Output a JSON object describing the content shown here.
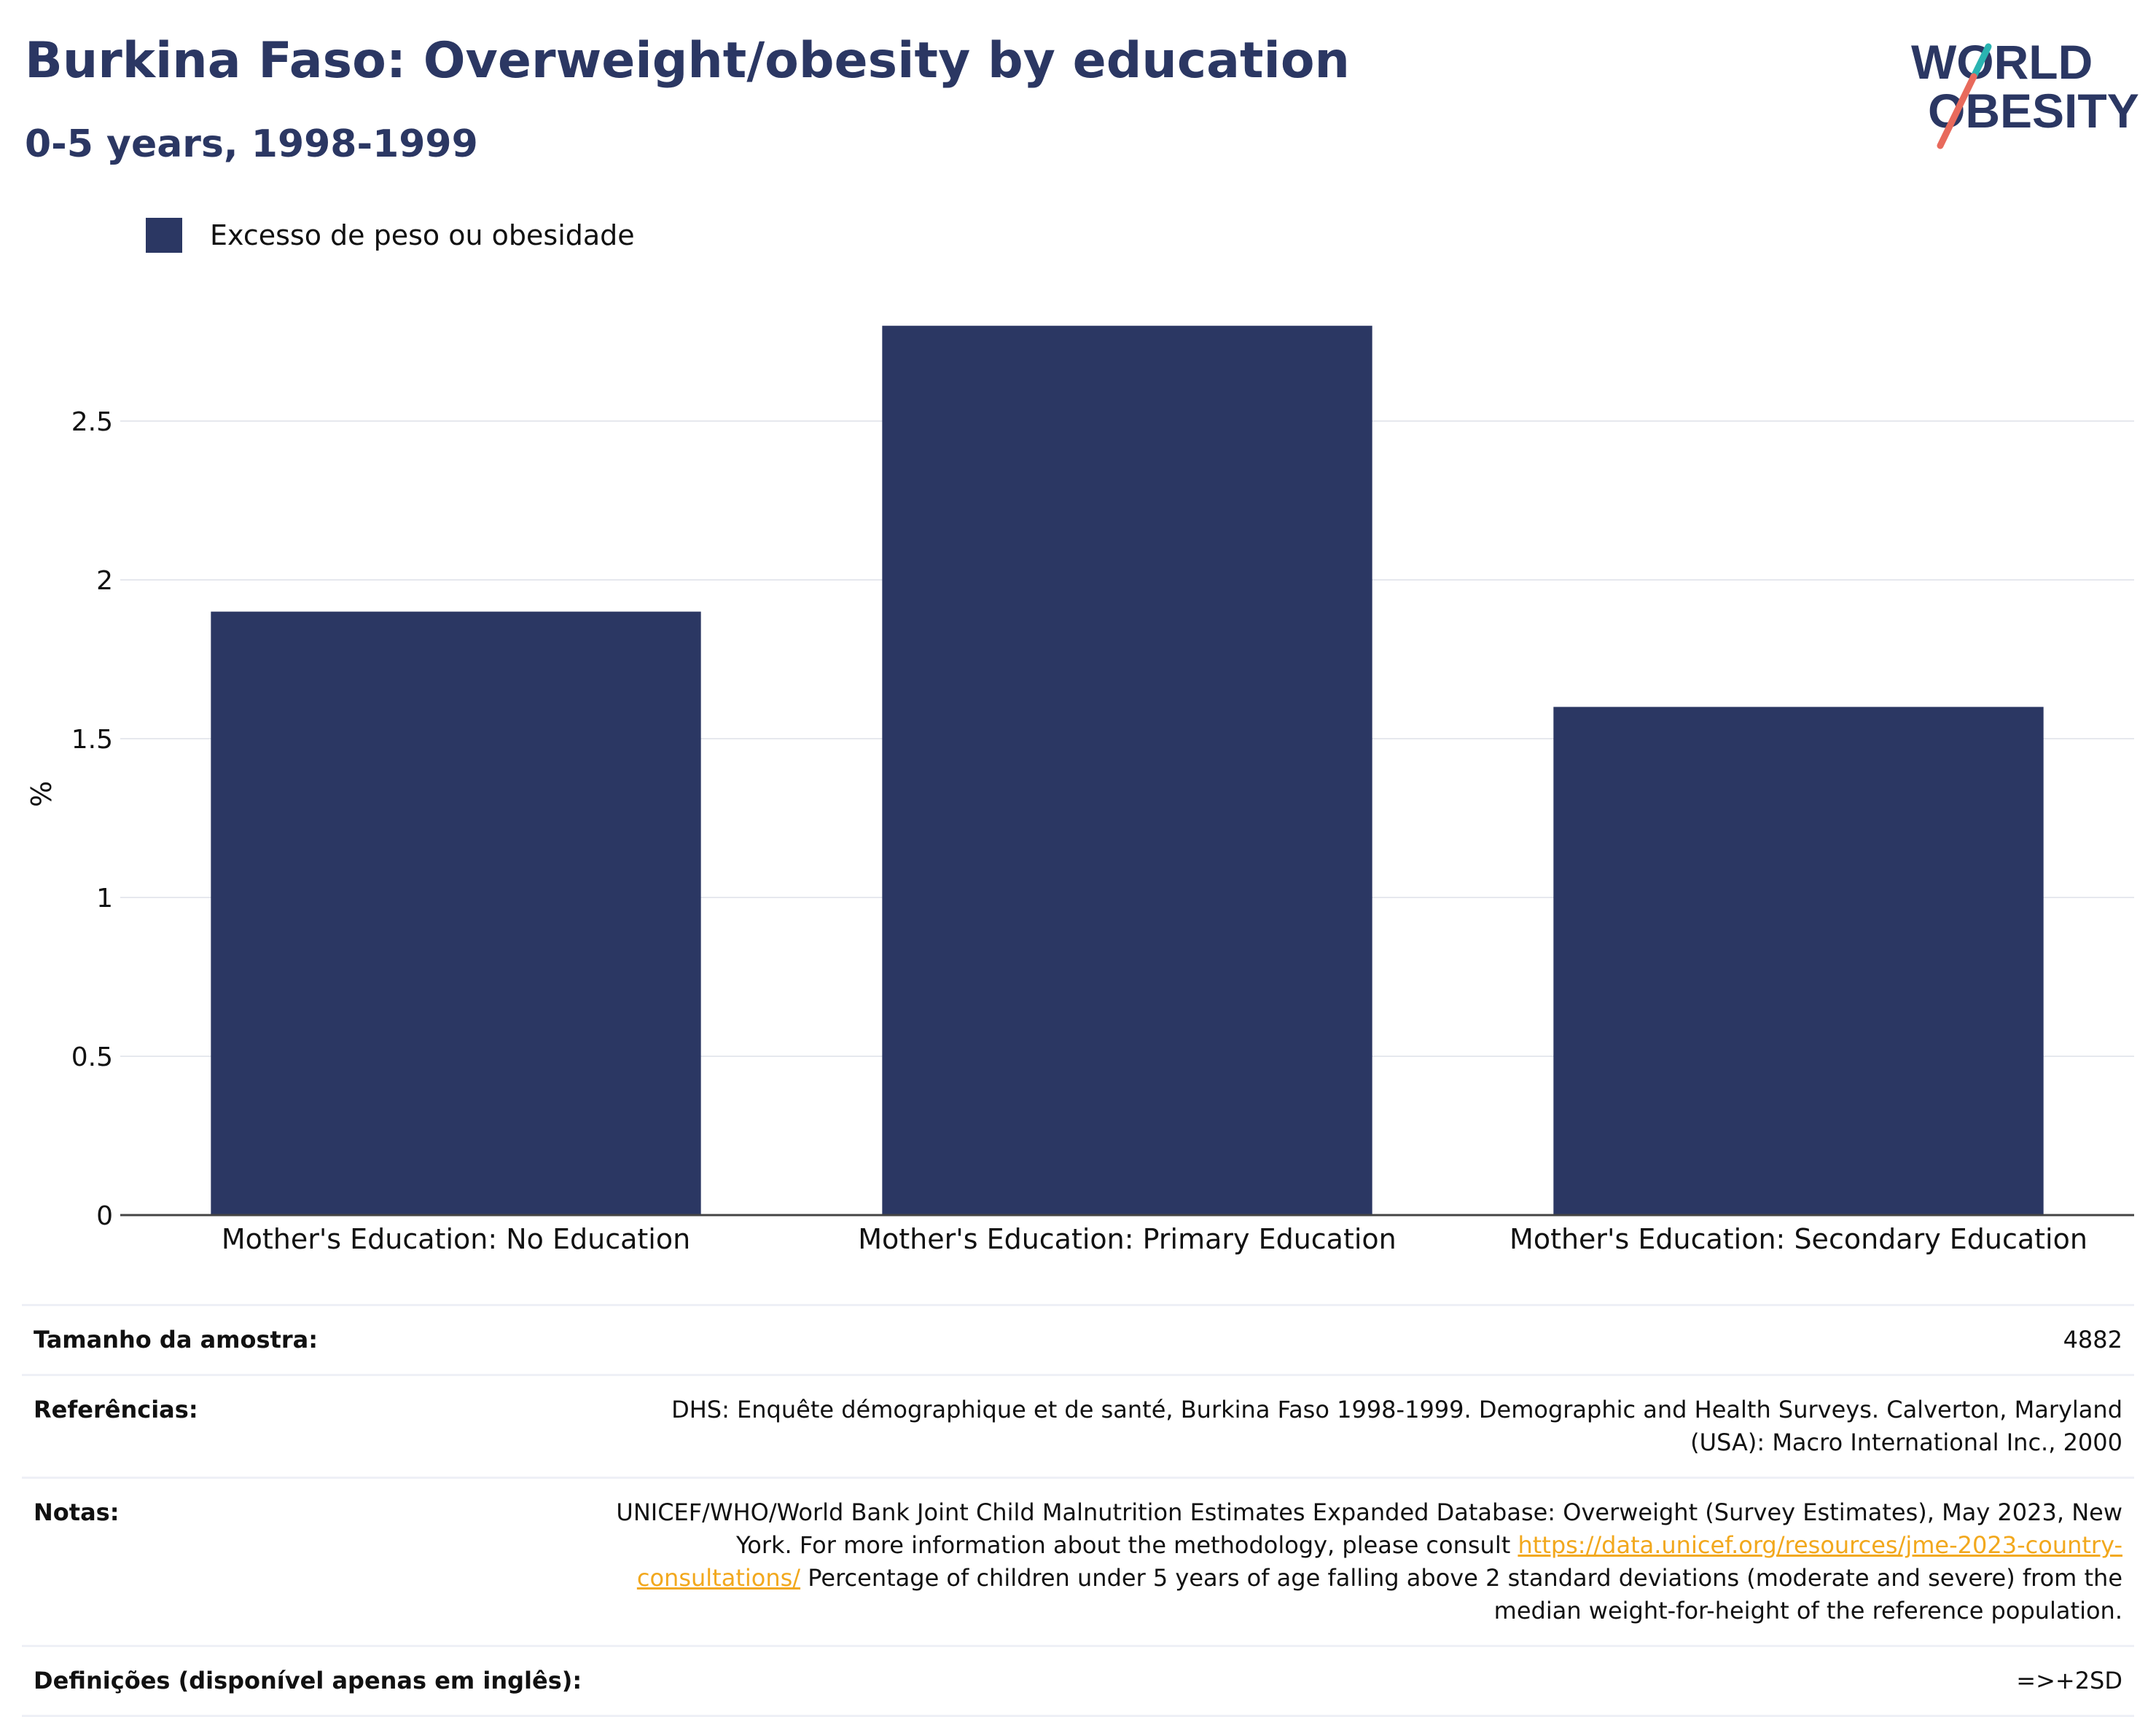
{
  "header": {
    "title": "Burkina Faso: Overweight/obesity by education",
    "subtitle": "0-5 years, 1998-1999"
  },
  "logo": {
    "line1": "WORLD",
    "line2": "OBESITY",
    "colors": {
      "text": "#2b3763",
      "slash_top": "#2ab3b1",
      "slash_bottom": "#e86a5c"
    }
  },
  "colors": {
    "bar": "#2b3763",
    "grid": "#e6e8ee",
    "axis": "#444444"
  },
  "chart_data": {
    "type": "bar",
    "categories": [
      "Mother's Education: No Education",
      "Mother's Education: Primary Education",
      "Mother's Education: Secondary Education"
    ],
    "series": [
      {
        "name": "Excesso de peso ou obesidade",
        "values": [
          1.9,
          2.8,
          1.6
        ]
      }
    ],
    "title": "Burkina Faso: Overweight/obesity by education",
    "subtitle": "0-5 years, 1998-1999",
    "xlabel": "",
    "ylabel": "%",
    "ylim": [
      0,
      3.0
    ],
    "yticks": [
      0,
      0.5,
      1,
      1.5,
      2,
      2.5
    ],
    "ytick_labels": [
      "0",
      "0.5",
      "1",
      "1.5",
      "2",
      "2.5"
    ],
    "grid": true,
    "legend_position": "top-left"
  },
  "info": {
    "sample": {
      "label": "Tamanho da amostra:",
      "value": "4882"
    },
    "references": {
      "label": "Referências:",
      "value": "DHS: Enquête démographique et de santé, Burkina Faso 1998-1999. Demographic and Health Surveys. Calverton, Maryland (USA): Macro International Inc., 2000"
    },
    "notes": {
      "label": "Notas:",
      "text_before": "UNICEF/WHO/World Bank Joint Child Malnutrition Estimates Expanded Database: Overweight (Survey Estimates), May 2023, New York. For more information about the methodology, please consult ",
      "link": "https://data.unicef.org/resources/jme-2023-country-consultations/",
      "text_after": " Percentage of children under 5 years of age falling above 2 standard deviations (moderate and severe) from the median weight-for-height of the reference population."
    },
    "definitions": {
      "label": "Definições (disponível apenas em inglês):",
      "value": "=>+2SD"
    }
  }
}
